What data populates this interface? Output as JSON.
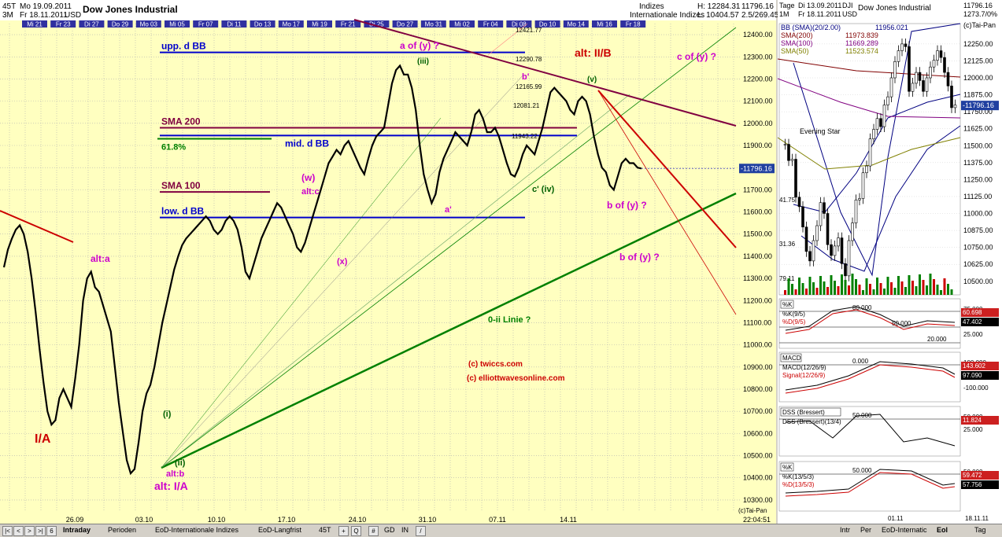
{
  "main_chart": {
    "header": {
      "interval": "45T",
      "range": "3M",
      "date_from": "Mo 19.09.2011",
      "date_to": "Fr 18.11.2011",
      "currency": "USD",
      "title": "Dow Jones Industrial",
      "category1": "Indizes",
      "category2": "Internationale Indizes",
      "high_label": "H: 12284.31",
      "low_label": "L: 10404.57",
      "extra1": "11796.16",
      "extra2": "2.5/269.45"
    },
    "top_dates": [
      "Mi 21",
      "Fr 23",
      "Di 27",
      "Do 29",
      "Mo 03",
      "Mi 05",
      "Fr 07",
      "Di 11",
      "Do 13",
      "Mo 17",
      "Mi 19",
      "Fr 21",
      "Di 25",
      "Do 27",
      "Mo 31",
      "Mi 02",
      "Fr 04",
      "Di 08",
      "Do 10",
      "Mo 14",
      "Mi 16",
      "Fr 18"
    ],
    "bottom_dates": [
      "26.09",
      "03.10",
      "10.10",
      "17.10",
      "24.10",
      "31.10",
      "07.11",
      "14.11"
    ],
    "copyright": "(c)Tai-Pan",
    "time": "22:04:51",
    "current_value": "11796.16"
  },
  "chart_data": [
    {
      "type": "line",
      "title": "Dow Jones Industrial",
      "ylim": [
        10250,
        12450
      ],
      "y_ticks": [
        "12400.00",
        "12300.00",
        "12200.00",
        "12100.00",
        "12000.00",
        "11900.00",
        "11800.00",
        "11700.00",
        "11600.00",
        "11500.00",
        "11400.00",
        "11300.00",
        "11200.00",
        "11100.00",
        "11000.00",
        "10900.00",
        "10800.00",
        "10700.00",
        "10600.00",
        "10500.00",
        "10400.00",
        "10300.00"
      ],
      "series": [
        {
          "values": [
            11350,
            11430,
            11480,
            11520,
            11540,
            11500,
            11420,
            11300,
            11150,
            10980,
            10830,
            10700,
            10640,
            10660,
            10760,
            10800,
            10760,
            10720,
            10850,
            11000,
            11200,
            11300,
            11330,
            11260,
            11240,
            11180,
            11120,
            11060,
            10900,
            10740,
            10610,
            10480,
            10420,
            10440,
            10560,
            10700,
            10780,
            10820,
            10900,
            11000,
            11100,
            11180,
            11260,
            11340,
            11400,
            11450,
            11480,
            11500,
            11520,
            11540,
            11560,
            11580,
            11560,
            11520,
            11500,
            11520,
            11560,
            11580,
            11560,
            11520,
            11440,
            11330,
            11300,
            11360,
            11420,
            11480,
            11520,
            11560,
            11600,
            11640,
            11620,
            11580,
            11540,
            11500,
            11440,
            11420,
            11460,
            11520,
            11580,
            11640,
            11700,
            11760,
            11820,
            11850,
            11880,
            11860,
            11900,
            11920,
            11880,
            11840,
            11800,
            11770,
            11840,
            11900,
            11940,
            11960,
            11980,
            12080,
            12180,
            12240,
            12260,
            12220,
            12220,
            12160,
            12060,
            11900,
            11770,
            11700,
            11640,
            11680,
            11780,
            11840,
            11880,
            11920,
            11960,
            11940,
            11920,
            11900,
            11960,
            12040,
            12060,
            12020,
            11960,
            11960,
            11980,
            11940,
            11880,
            11820,
            11770,
            11760,
            11800,
            11860,
            11900,
            11880,
            11860,
            11920,
            11980,
            12060,
            12140,
            12160,
            12140,
            12120,
            12100,
            12060,
            12040,
            12100,
            12120,
            12100,
            12040,
            11940,
            11860,
            11800,
            11780,
            11720,
            11700,
            11760,
            11820,
            11840,
            11820,
            11820,
            11800,
            11796
          ]
        }
      ],
      "lines": [
        {
          "name": "upp. d BB",
          "value": 12320,
          "color": "#0000cc"
        },
        {
          "name": "SMA 200",
          "value": 11980,
          "color": "#800040"
        },
        {
          "name": "mid. d BB",
          "value": 11945,
          "color": "#0000cc"
        },
        {
          "name": "SMA 100",
          "value": 11690,
          "color": "#800040"
        },
        {
          "name": "low. d BB",
          "value": 11575,
          "color": "#0000cc"
        }
      ],
      "levels": [
        {
          "label": "12421.77",
          "value": 12421.77
        },
        {
          "label": "12290.78",
          "value": 12290.78
        },
        {
          "label": "12165.99",
          "value": 12165.99
        },
        {
          "label": "12081.21",
          "value": 12081.21
        },
        {
          "label": "11943.22",
          "value": 11943.22
        }
      ]
    },
    {
      "type": "bar",
      "title": "Dow Jones Industrial",
      "header": {
        "range": "Tage",
        "date_from": "Di 13.09.2011",
        "date_to": "Fr 18.11.2011",
        "interval": "1M",
        "symbol": "DJI",
        "currency": "USD"
      },
      "legend": [
        {
          "label": "BB (SMA)(20/2.00)",
          "value": "11956.021",
          "color": "#000080"
        },
        {
          "label": "SMA(200)",
          "value": "11973.839",
          "color": "#800000"
        },
        {
          "label": "SMA(100)",
          "value": "11669.289",
          "color": "#800080"
        },
        {
          "label": "SMA(50)",
          "value": "11523.574",
          "color": "#808000"
        }
      ],
      "ylim": [
        10400,
        12400
      ],
      "y_ticks": [
        "12250.00",
        "12125.00",
        "12000.00",
        "11875.00",
        "11750.00",
        "11625.00",
        "11500.00",
        "11375.00",
        "11250.00",
        "11125.00",
        "11000.00",
        "10875.00",
        "10750.00",
        "10625.00",
        "10500.00"
      ],
      "candles": [
        11510,
        11390,
        11400,
        11120,
        11050,
        10900,
        10720,
        10650,
        10800,
        10910,
        11080,
        11000,
        10770,
        10690,
        10760,
        10820,
        10630,
        10540,
        10800,
        10930,
        11100,
        11110,
        11300,
        11350,
        11550,
        11620,
        11700,
        11640,
        11800,
        11860,
        12000,
        12120,
        12200,
        12250,
        12230,
        11900,
        11960,
        12040,
        11980,
        11900,
        12000,
        12080,
        12130,
        12200,
        12150,
        12040,
        11940,
        11780,
        11800
      ],
      "annotation": "Evening Star",
      "labels": [
        "79.11",
        "31.36",
        "41.75"
      ],
      "current_value": "-11796.16",
      "top_right_values": [
        "11796.16",
        "1273.7/0%"
      ],
      "copyright": "(c)Tai-Pan"
    }
  ],
  "annotations": {
    "a_of_y": "a of (y) ?",
    "c_of_y": "c of (y) ?",
    "alt_IIB": "alt: II/B",
    "iii": "(iii)",
    "v": "(v)",
    "iv": "c' (iv)",
    "b_prime": "b'",
    "w": "(w)",
    "alt_c": "alt:c",
    "x": "(x)",
    "a_prime": "a'",
    "b_of_y_1": "b of (y) ?",
    "b_of_y_2": "b of (y) ?",
    "alt_a": "alt:a",
    "ii_i": "(i)",
    "ii_ii": "(ii)",
    "alt_b": "alt:b",
    "alt_IA": "alt: I/A",
    "IA": "I/A",
    "zero_ii": "0-ii Linie ?",
    "fib": "61.8%",
    "credit1": "(c) twiccs.com",
    "credit2": "(c) elliottwavesonline.com"
  },
  "indicators": [
    {
      "name": "%K",
      "legend": [
        "%K(9/5)",
        "%D(9/5)"
      ],
      "values_right": [
        "60.698",
        "47.402"
      ],
      "ticks": [
        "75.000",
        "50.000",
        "25.000"
      ],
      "mid_labels": [
        "80.000",
        "50.000",
        "20.000"
      ]
    },
    {
      "name": "MACD",
      "legend": [
        "MACD(12/26/9)",
        "Signal(12/26/9)"
      ],
      "values_right": [
        "143.602",
        "97.090"
      ],
      "ticks": [
        "100.000",
        "0.000",
        "-100.000"
      ],
      "mid_labels": [
        "0.000"
      ]
    },
    {
      "name": "DSS (Bressert)",
      "legend": [
        "DSS (Bressert)(13/4)"
      ],
      "values_right": [
        "11.824"
      ],
      "ticks": [
        "50.000",
        "25.000"
      ],
      "mid_labels": [
        "50.000"
      ]
    },
    {
      "name": "%K",
      "legend": [
        "%K(13/5/3)",
        "%D(13/5/3)"
      ],
      "values_right": [
        "59.472",
        "57.756"
      ],
      "ticks": [
        "50.000",
        "25.000"
      ],
      "mid_labels": [
        "50.000"
      ]
    }
  ],
  "right_bottom_date": "01.11",
  "right_bottom_date2": "18.11.11",
  "tabs": {
    "left": [
      "Intraday",
      "Perioden",
      "EoD-Internationale Indizes",
      "EoD-Langfrist"
    ],
    "left_interval": "45T",
    "right": [
      "Intr",
      "Per",
      "EoD-Internatic",
      "Eol"
    ],
    "right_select": "Tag",
    "icons": [
      "GD",
      "IN"
    ]
  }
}
